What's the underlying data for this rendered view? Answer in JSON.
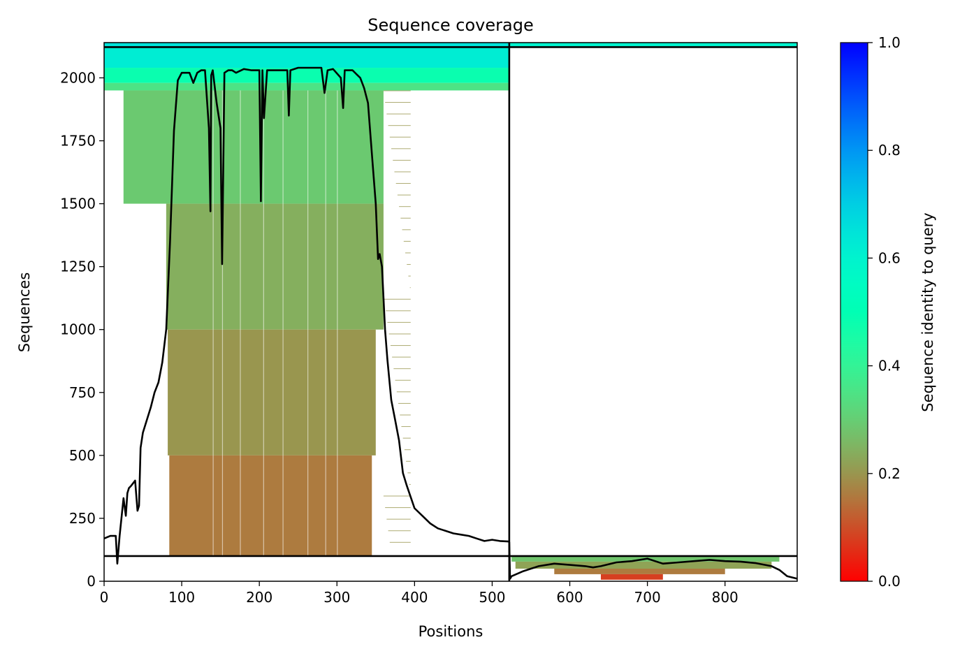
{
  "chart_data": {
    "type": "heatmap",
    "title": "Sequence coverage",
    "xlabel": "Positions",
    "ylabel": "Sequences",
    "xlim": [
      0,
      893
    ],
    "ylim": [
      0,
      2140
    ],
    "x_ticks": [
      "0",
      "100",
      "200",
      "300",
      "400",
      "500",
      "600",
      "700",
      "800"
    ],
    "y_ticks": [
      "0",
      "250",
      "500",
      "750",
      "1000",
      "1250",
      "1500",
      "1750",
      "2000"
    ],
    "colorbar": {
      "label": "Sequence identity to query",
      "range": [
        0,
        1
      ],
      "ticks": [
        "0.0",
        "0.2",
        "0.4",
        "0.6",
        "0.8",
        "1.0"
      ],
      "colormap": "rainbow_r"
    },
    "chain_break_position": 522,
    "horizontal_dividers": [
      100,
      2122
    ],
    "blocks": [
      {
        "x": [
          0,
          522
        ],
        "y": [
          2122,
          2140
        ],
        "identity": 0.65
      },
      {
        "x": [
          0,
          522
        ],
        "y": [
          2040,
          2122
        ],
        "identity": 0.62
      },
      {
        "x": [
          0,
          522
        ],
        "y": [
          1980,
          2040
        ],
        "identity": 0.48
      },
      {
        "x": [
          0,
          522
        ],
        "y": [
          1950,
          1980
        ],
        "identity": 0.35
      },
      {
        "x": [
          25,
          360
        ],
        "y": [
          1500,
          1950
        ],
        "identity": 0.29
      },
      {
        "x": [
          80,
          360
        ],
        "y": [
          1000,
          1500
        ],
        "identity": 0.24
      },
      {
        "x": [
          82,
          350
        ],
        "y": [
          500,
          1000
        ],
        "identity": 0.2
      },
      {
        "x": [
          84,
          345
        ],
        "y": [
          100,
          500
        ],
        "identity": 0.16
      },
      {
        "x": [
          522,
          893
        ],
        "y": [
          2125,
          2140
        ],
        "identity": 0.6
      },
      {
        "x": [
          525,
          870
        ],
        "y": [
          78,
          100
        ],
        "identity": 0.28
      },
      {
        "x": [
          530,
          860
        ],
        "y": [
          50,
          78
        ],
        "identity": 0.22
      },
      {
        "x": [
          580,
          800
        ],
        "y": [
          28,
          50
        ],
        "identity": 0.16
      },
      {
        "x": [
          640,
          720
        ],
        "y": [
          6,
          28
        ],
        "identity": 0.08
      }
    ],
    "coverage_line": {
      "x": [
        0,
        8,
        15,
        17,
        20,
        25,
        28,
        30,
        32,
        35,
        40,
        43,
        45,
        47,
        50,
        55,
        60,
        65,
        70,
        75,
        80,
        85,
        90,
        95,
        100,
        110,
        115,
        120,
        125,
        130,
        135,
        137,
        138,
        140,
        145,
        150,
        152,
        155,
        160,
        165,
        170,
        180,
        190,
        200,
        202,
        204,
        206,
        210,
        220,
        230,
        236,
        238,
        240,
        250,
        260,
        270,
        280,
        284,
        288,
        295,
        305,
        308,
        310,
        315,
        320,
        330,
        335,
        340,
        345,
        350,
        353,
        355,
        358,
        362,
        365,
        370,
        375,
        380,
        385,
        390,
        400,
        410,
        420,
        430,
        440,
        450,
        460,
        470,
        480,
        490,
        500,
        510,
        521,
        522,
        523,
        525,
        540,
        560,
        580,
        600,
        620,
        630,
        640,
        660,
        680,
        700,
        720,
        740,
        760,
        780,
        800,
        820,
        840,
        860,
        870,
        880,
        893
      ],
      "y": [
        170,
        180,
        180,
        70,
        180,
        330,
        260,
        350,
        370,
        380,
        400,
        280,
        300,
        530,
        590,
        640,
        690,
        750,
        790,
        870,
        1000,
        1350,
        1790,
        1990,
        2020,
        2020,
        1980,
        2020,
        2030,
        2030,
        1800,
        1470,
        2010,
        2030,
        1900,
        1800,
        1260,
        2020,
        2030,
        2030,
        2020,
        2035,
        2030,
        2030,
        1510,
        2030,
        1840,
        2030,
        2030,
        2030,
        2030,
        1850,
        2030,
        2040,
        2040,
        2040,
        2040,
        1940,
        2030,
        2035,
        2000,
        1880,
        2030,
        2030,
        2030,
        2000,
        1960,
        1900,
        1700,
        1500,
        1280,
        1300,
        1250,
        1000,
        880,
        720,
        640,
        560,
        430,
        380,
        290,
        260,
        230,
        210,
        200,
        190,
        185,
        180,
        170,
        160,
        165,
        160,
        158,
        155,
        10,
        20,
        40,
        60,
        70,
        65,
        60,
        55,
        60,
        75,
        80,
        90,
        70,
        75,
        80,
        85,
        80,
        78,
        72,
        60,
        45,
        20,
        10
      ]
    }
  }
}
